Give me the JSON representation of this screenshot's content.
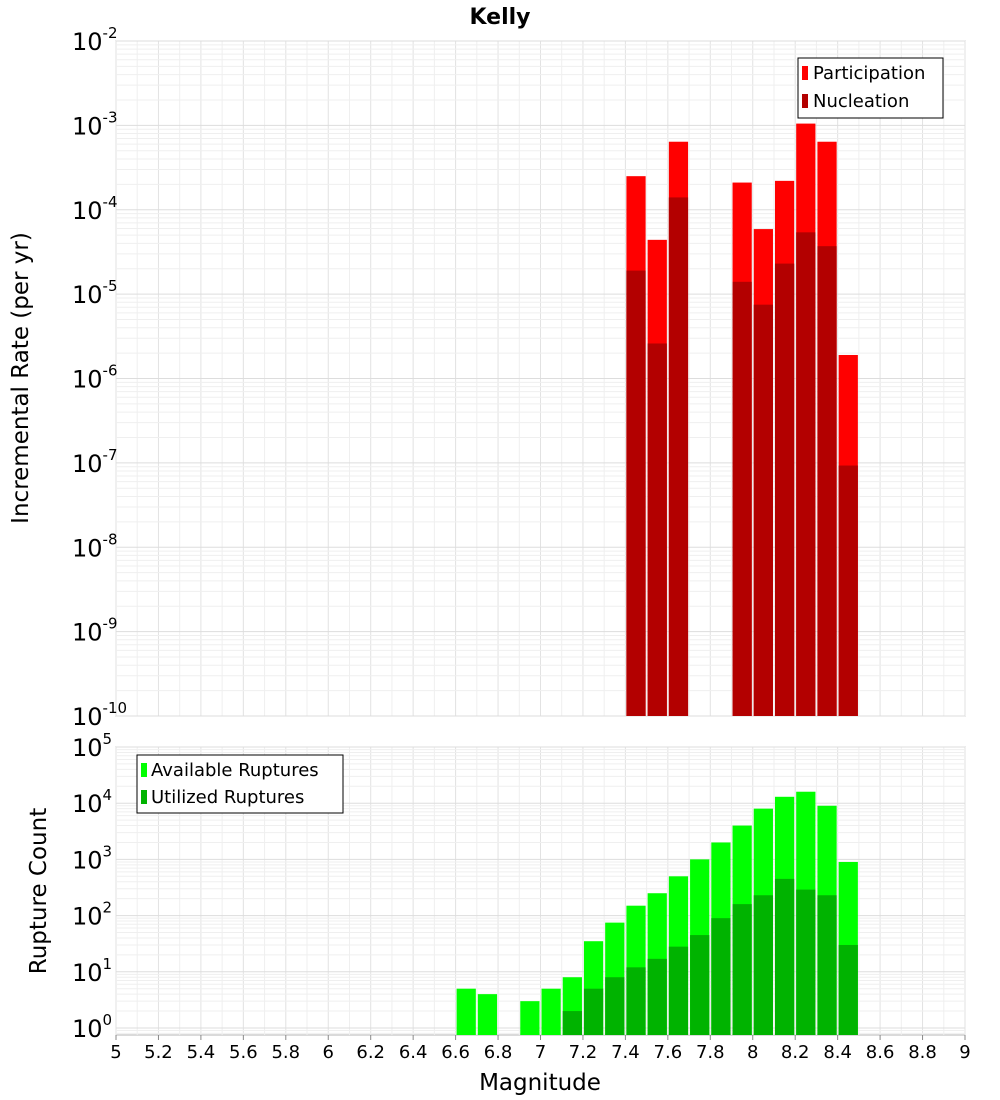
{
  "chart_data": [
    {
      "type": "bar",
      "title": "Kelly",
      "xlabel": "",
      "ylabel": "Incremental Rate (per yr)",
      "yscale": "log",
      "xlim": [
        5,
        9
      ],
      "ylim": [
        1e-10,
        0.01
      ],
      "y_tick_exponents": [
        "-2",
        "-3",
        "-4",
        "-5",
        "-6",
        "-7",
        "-8",
        "-9",
        "-10"
      ],
      "bin_width": 0.1,
      "legend_position": "top-right",
      "grid": true,
      "series": [
        {
          "name": "Participation",
          "color": "#ff0000",
          "x": [
            7.45,
            7.55,
            7.65,
            7.95,
            8.05,
            8.15,
            8.25,
            8.35,
            8.45
          ],
          "values": [
            0.00025,
            4.4e-05,
            0.00064,
            0.00021,
            5.9e-05,
            0.00022,
            0.00105,
            0.00064,
            1.9e-06
          ]
        },
        {
          "name": "Nucleation",
          "color": "#b30000",
          "x": [
            7.45,
            7.55,
            7.65,
            7.95,
            8.05,
            8.15,
            8.25,
            8.35,
            8.45
          ],
          "values": [
            1.9e-05,
            2.6e-06,
            0.00014,
            1.4e-05,
            7.5e-06,
            2.3e-05,
            5.4e-05,
            3.7e-05,
            9.3e-08
          ]
        }
      ]
    },
    {
      "type": "bar",
      "title": "",
      "xlabel": "Magnitude",
      "ylabel": "Rupture Count",
      "yscale": "log",
      "xlim": [
        5,
        9
      ],
      "ylim": [
        0.75,
        100000.0
      ],
      "y_tick_exponents": [
        "5",
        "4",
        "3",
        "2",
        "1",
        "0"
      ],
      "x_ticks": [
        "5",
        "5.2",
        "5.4",
        "5.6",
        "5.8",
        "6",
        "6.2",
        "6.4",
        "6.6",
        "6.8",
        "7",
        "7.2",
        "7.4",
        "7.6",
        "7.8",
        "8",
        "8.2",
        "8.4",
        "8.6",
        "8.8",
        "9"
      ],
      "bin_width": 0.1,
      "legend_position": "top-left",
      "grid": true,
      "series": [
        {
          "name": "Available Ruptures",
          "color": "#00ff00",
          "x": [
            6.65,
            6.75,
            6.95,
            7.05,
            7.15,
            7.25,
            7.35,
            7.45,
            7.55,
            7.65,
            7.75,
            7.85,
            7.95,
            8.05,
            8.15,
            8.25,
            8.35,
            8.45
          ],
          "values": [
            5,
            4,
            3,
            5,
            8,
            35,
            75,
            150,
            250,
            500,
            1000,
            2000,
            4000,
            8000,
            13000,
            16000,
            9000,
            900
          ]
        },
        {
          "name": "Utilized Ruptures",
          "color": "#00b300",
          "x": [
            7.15,
            7.25,
            7.35,
            7.45,
            7.55,
            7.65,
            7.75,
            7.85,
            7.95,
            8.05,
            8.15,
            8.25,
            8.35,
            8.45
          ],
          "values": [
            2,
            5,
            8,
            12,
            17,
            28,
            45,
            90,
            160,
            230,
            450,
            290,
            230,
            30
          ]
        }
      ]
    }
  ]
}
